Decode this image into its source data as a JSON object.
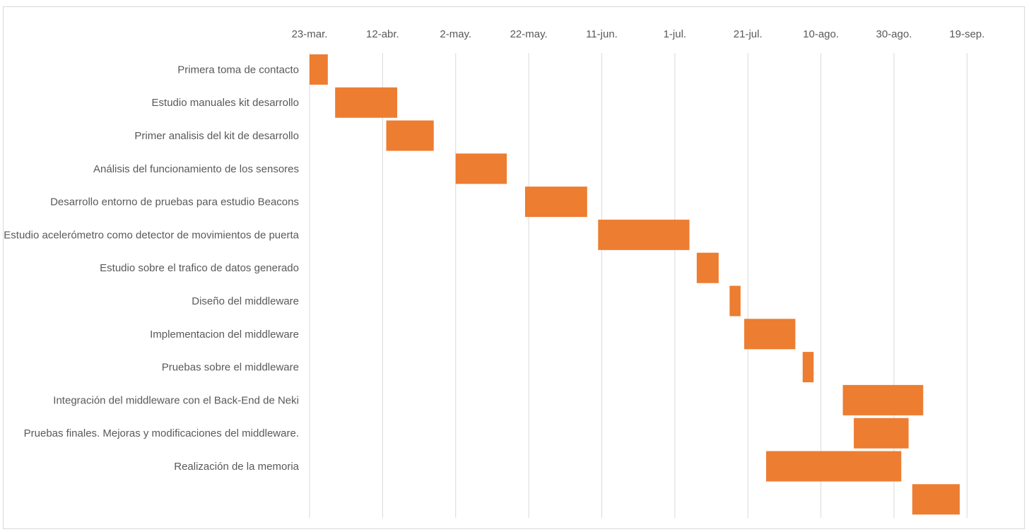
{
  "chart_data": {
    "type": "bar",
    "orientation": "horizontal",
    "subtype": "gantt",
    "title": "",
    "xlabel": "",
    "ylabel": "",
    "x_axis_position": "top",
    "grid": true,
    "legend": "none",
    "bar_color": "#ed7d31",
    "xlim": [
      "2016-03-23",
      "2016-09-29"
    ],
    "ticks": [
      {
        "date": "2016-03-23",
        "label": "23-mar."
      },
      {
        "date": "2016-04-12",
        "label": "12-abr."
      },
      {
        "date": "2016-05-02",
        "label": "2-may."
      },
      {
        "date": "2016-05-22",
        "label": "22-may."
      },
      {
        "date": "2016-06-11",
        "label": "11-jun."
      },
      {
        "date": "2016-07-01",
        "label": "1-jul."
      },
      {
        "date": "2016-07-21",
        "label": "21-jul."
      },
      {
        "date": "2016-08-10",
        "label": "10-ago."
      },
      {
        "date": "2016-08-30",
        "label": "30-ago."
      },
      {
        "date": "2016-09-19",
        "label": "19-sep."
      }
    ],
    "tasks": [
      {
        "name": "Primera toma de contacto",
        "start": "2016-03-23",
        "end": "2016-03-28"
      },
      {
        "name": "Estudio manuales kit desarrollo",
        "start": "2016-03-30",
        "end": "2016-04-16"
      },
      {
        "name": "Primer analisis del kit de desarrollo",
        "start": "2016-04-13",
        "end": "2016-04-26"
      },
      {
        "name": "Análisis del funcionamiento de los sensores",
        "start": "2016-05-02",
        "end": "2016-05-16"
      },
      {
        "name": "Desarrollo entorno de pruebas para estudio Beacons",
        "start": "2016-05-21",
        "end": "2016-06-07"
      },
      {
        "name": "Estudio acelerómetro como detector de movimientos de puerta",
        "start": "2016-06-10",
        "end": "2016-07-05"
      },
      {
        "name": "Estudio sobre el trafico de datos generado",
        "start": "2016-07-07",
        "end": "2016-07-13"
      },
      {
        "name": "Diseño del middleware",
        "start": "2016-07-16",
        "end": "2016-07-19"
      },
      {
        "name": "Implementacion del middleware",
        "start": "2016-07-20",
        "end": "2016-08-03"
      },
      {
        "name": "Pruebas sobre el middleware",
        "start": "2016-08-05",
        "end": "2016-08-08"
      },
      {
        "name": "Integración del middleware con el Back-End de Neki",
        "start": "2016-08-16",
        "end": "2016-09-07"
      },
      {
        "name": "Pruebas finales. Mejoras y modificaciones del middleware.",
        "start": "2016-08-19",
        "end": "2016-09-03"
      },
      {
        "name": "Realización de la memoria",
        "start": "2016-07-26",
        "end": "2016-09-01"
      },
      {
        "name": "",
        "start": "2016-09-04",
        "end": "2016-09-17"
      }
    ]
  }
}
